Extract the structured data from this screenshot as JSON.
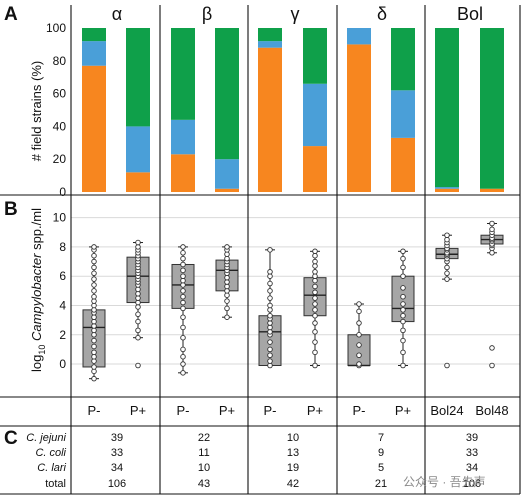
{
  "panel_letters": {
    "a": "A",
    "b": "B",
    "c": "C"
  },
  "groups": [
    "α",
    "β",
    "γ",
    "δ",
    "Bol"
  ],
  "colors": {
    "orange": "#f7861f",
    "blue": "#4a9fd8",
    "green": "#0fa04a",
    "box": "#a6a6a6"
  },
  "chart_data": [
    {
      "type": "bar",
      "stacked": true,
      "ylabel": "# field strains (%)",
      "ylim": [
        0,
        100
      ],
      "yticks": [
        0,
        20,
        40,
        60,
        80,
        100
      ],
      "grid": false,
      "legend": "none",
      "categories": [
        "α P-",
        "α P+",
        "β P-",
        "β P+",
        "γ P-",
        "γ P+",
        "δ P-",
        "δ P+",
        "Bol24",
        "Bol48"
      ],
      "series": [
        {
          "color": "orange",
          "values": [
            77,
            12,
            23,
            2,
            88,
            28,
            90,
            33,
            2,
            2
          ]
        },
        {
          "color": "blue",
          "values": [
            15,
            28,
            21,
            18,
            4,
            38,
            10,
            29,
            1,
            0
          ]
        },
        {
          "color": "green",
          "values": [
            8,
            60,
            56,
            80,
            8,
            34,
            0,
            38,
            97,
            98
          ]
        }
      ]
    },
    {
      "type": "box",
      "ylabel_prefix": "log",
      "ylabel_sub": "10",
      "ylabel_italic": "Campylobacter",
      "ylabel_suffix": " spp./ml",
      "ylim": [
        -1.5,
        11
      ],
      "yticks": [
        0,
        2,
        4,
        6,
        8,
        10
      ],
      "grid": true,
      "categories": [
        "P-",
        "P+",
        "P-",
        "P+",
        "P-",
        "P+",
        "P-",
        "P+",
        "Bol24",
        "Bol48"
      ],
      "boxes": [
        {
          "min": -1.0,
          "q1": -0.2,
          "median": 2.5,
          "q3": 3.7,
          "max": 8.0,
          "points": [
            -1.0,
            -0.5,
            -0.2,
            0.2,
            0.5,
            0.8,
            1.2,
            1.6,
            2.0,
            2.3,
            2.6,
            2.9,
            3.2,
            3.5,
            3.7,
            4.0,
            4.3,
            4.6,
            5.0,
            5.4,
            5.8,
            6.2,
            6.6,
            7.0,
            7.4,
            7.8,
            8.0
          ]
        },
        {
          "min": 1.8,
          "q1": 4.2,
          "median": 6.0,
          "q3": 7.3,
          "max": 8.3,
          "outliers": [
            -0.1
          ],
          "points": [
            1.8,
            2.3,
            2.9,
            3.4,
            3.9,
            4.2,
            4.5,
            4.8,
            5.1,
            5.4,
            5.6,
            5.8,
            6.0,
            6.2,
            6.4,
            6.6,
            6.8,
            7.0,
            7.2,
            7.4,
            7.6,
            7.8,
            8.0,
            8.3,
            -0.1
          ]
        },
        {
          "min": -0.6,
          "q1": 3.8,
          "median": 5.4,
          "q3": 6.8,
          "max": 8.0,
          "points": [
            -0.6,
            0.0,
            0.5,
            1.0,
            1.8,
            2.5,
            3.2,
            3.8,
            4.2,
            4.6,
            5.0,
            5.4,
            5.7,
            6.0,
            6.4,
            6.8,
            7.2,
            7.6,
            8.0
          ]
        },
        {
          "min": 3.2,
          "q1": 5.0,
          "median": 6.4,
          "q3": 7.1,
          "max": 8.0,
          "points": [
            3.2,
            3.8,
            4.3,
            4.7,
            5.0,
            5.3,
            5.6,
            5.9,
            6.2,
            6.4,
            6.6,
            6.8,
            7.0,
            7.2,
            7.5,
            7.8,
            8.0
          ]
        },
        {
          "min": -0.1,
          "q1": -0.1,
          "median": 2.2,
          "q3": 3.3,
          "max": 7.8,
          "points": [
            -0.1,
            0.2,
            0.6,
            1.0,
            1.5,
            2.0,
            2.2,
            2.5,
            2.8,
            3.1,
            3.3,
            3.7,
            4.0,
            4.5,
            5.0,
            5.5,
            6.0,
            6.3,
            7.8
          ]
        },
        {
          "min": -0.1,
          "q1": 3.3,
          "median": 4.7,
          "q3": 5.9,
          "max": 7.7,
          "points": [
            -0.1,
            0.8,
            1.5,
            2.2,
            2.8,
            3.3,
            3.7,
            4.1,
            4.5,
            4.9,
            5.3,
            5.7,
            6.0,
            6.3,
            6.7,
            7.0,
            7.4,
            7.7
          ]
        },
        {
          "min": -0.1,
          "q1": -0.1,
          "median": -0.1,
          "q3": 2.0,
          "max": 4.1,
          "points": [
            -0.1,
            0.0,
            0.6,
            1.3,
            2.0,
            2.8,
            3.6,
            4.1
          ]
        },
        {
          "min": -0.1,
          "q1": 2.9,
          "median": 3.8,
          "q3": 6.0,
          "max": 7.7,
          "points": [
            -0.1,
            0.8,
            1.6,
            2.3,
            2.9,
            3.3,
            3.7,
            4.1,
            4.6,
            5.2,
            6.0,
            6.6,
            7.2,
            7.7
          ]
        },
        {
          "min": 5.8,
          "q1": 7.2,
          "median": 7.5,
          "q3": 7.9,
          "max": 8.8,
          "outliers": [
            -0.1
          ],
          "points": [
            5.8,
            6.2,
            6.6,
            7.0,
            7.2,
            7.4,
            7.5,
            7.6,
            7.8,
            7.9,
            8.1,
            8.3,
            8.5,
            8.8,
            -0.1
          ]
        },
        {
          "min": 7.6,
          "q1": 8.2,
          "median": 8.5,
          "q3": 8.8,
          "max": 9.6,
          "outliers": [
            1.1,
            -0.1
          ],
          "points": [
            7.6,
            7.9,
            8.1,
            8.2,
            8.4,
            8.5,
            8.6,
            8.8,
            9.0,
            9.2,
            9.6,
            1.1,
            -0.1
          ]
        }
      ]
    },
    {
      "type": "table",
      "rows": [
        {
          "label": "C. jejuni",
          "italic": true,
          "values": [
            "39",
            "22",
            "10",
            "7",
            "39"
          ]
        },
        {
          "label": "C. coli",
          "italic": true,
          "values": [
            "33",
            "11",
            "13",
            "9",
            "33"
          ]
        },
        {
          "label": "C. lari",
          "italic": true,
          "values": [
            "34",
            "10",
            "19",
            "5",
            "34"
          ]
        },
        {
          "label": "total",
          "italic": false,
          "values": [
            "106",
            "43",
            "42",
            "21",
            "106"
          ]
        }
      ]
    }
  ],
  "watermark": {
    "text": "公众号 · 吾先声"
  }
}
